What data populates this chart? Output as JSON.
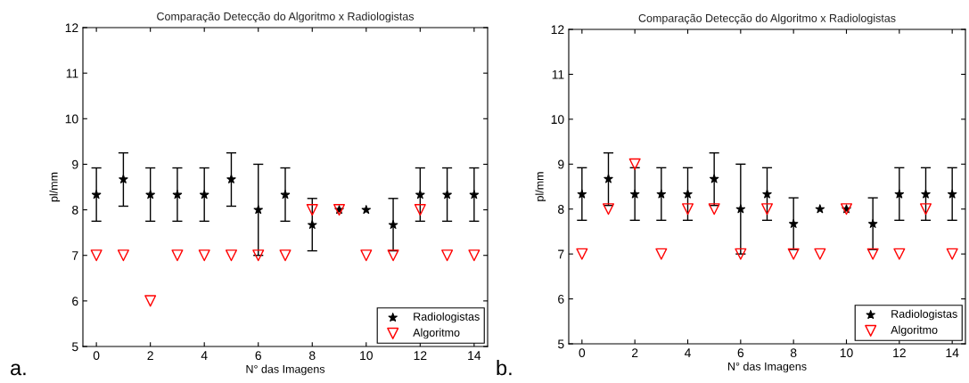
{
  "chart_data": [
    {
      "type": "scatter",
      "title": "Comparação Detecção do Algoritmo x Radiologistas",
      "xlabel": "N° das Imagens",
      "ylabel": "pl/mm",
      "annotations": [
        "a."
      ],
      "x": [
        0,
        1,
        2,
        3,
        4,
        5,
        6,
        7,
        8,
        9,
        10,
        11,
        12,
        13,
        14
      ],
      "series": [
        {
          "name": "Radiologistas",
          "color": "#000000",
          "marker": "star",
          "values": [
            8.33,
            8.67,
            8.33,
            8.33,
            8.33,
            8.67,
            8.0,
            8.33,
            7.67,
            8.0,
            8.0,
            7.67,
            8.33,
            8.33,
            8.33
          ],
          "errors": [
            [
              7.75,
              8.92
            ],
            [
              8.08,
              9.25
            ],
            [
              7.75,
              8.92
            ],
            [
              7.75,
              8.92
            ],
            [
              7.75,
              8.92
            ],
            [
              8.08,
              9.25
            ],
            [
              7.0,
              9.0
            ],
            [
              7.75,
              8.92
            ],
            [
              7.1,
              8.25
            ],
            null,
            null,
            [
              7.1,
              8.25
            ],
            [
              7.75,
              8.92
            ],
            [
              7.75,
              8.92
            ],
            [
              7.75,
              8.92
            ]
          ]
        },
        {
          "name": "Algoritmo",
          "color": "#ff0000",
          "marker": "triangle",
          "values": [
            7,
            7,
            6,
            7,
            7,
            7,
            7,
            7,
            8,
            8,
            7,
            7,
            8,
            7,
            7
          ]
        }
      ],
      "xlim": [
        -0.5,
        14.5
      ],
      "ylim": [
        5,
        12
      ],
      "xticks": [
        0,
        2,
        4,
        6,
        8,
        10,
        12,
        14
      ],
      "yticks": [
        5,
        6,
        7,
        8,
        9,
        10,
        11,
        12
      ],
      "grid": false,
      "legend": "bottom right"
    },
    {
      "type": "scatter",
      "title": "Comparação Detecção do Algoritmo x Radiologistas",
      "xlabel": "N° das Imagens",
      "ylabel": "pl/mm",
      "annotations": [
        "b."
      ],
      "x": [
        0,
        1,
        2,
        3,
        4,
        5,
        6,
        7,
        8,
        9,
        10,
        11,
        12,
        13,
        14
      ],
      "series": [
        {
          "name": "Radiologistas",
          "color": "#000000",
          "marker": "star",
          "values": [
            8.33,
            8.67,
            8.33,
            8.33,
            8.33,
            8.67,
            8.0,
            8.33,
            7.67,
            8.0,
            8.0,
            7.67,
            8.33,
            8.33,
            8.33
          ],
          "errors": [
            [
              7.75,
              8.92
            ],
            [
              8.08,
              9.25
            ],
            [
              7.75,
              8.92
            ],
            [
              7.75,
              8.92
            ],
            [
              7.75,
              8.92
            ],
            [
              8.08,
              9.25
            ],
            [
              7.0,
              9.0
            ],
            [
              7.75,
              8.92
            ],
            [
              7.1,
              8.25
            ],
            null,
            null,
            [
              7.1,
              8.25
            ],
            [
              7.75,
              8.92
            ],
            [
              7.75,
              8.92
            ],
            [
              7.75,
              8.92
            ]
          ]
        },
        {
          "name": "Algoritmo",
          "color": "#ff0000",
          "marker": "triangle",
          "values": [
            7,
            8,
            9,
            7,
            8,
            8,
            7,
            8,
            7,
            7,
            8,
            7,
            7,
            8,
            7
          ]
        }
      ],
      "xlim": [
        -0.5,
        14.5
      ],
      "ylim": [
        5,
        12
      ],
      "xticks": [
        0,
        2,
        4,
        6,
        8,
        10,
        12,
        14
      ],
      "yticks": [
        5,
        6,
        7,
        8,
        9,
        10,
        11,
        12
      ],
      "grid": false,
      "legend": "bottom right"
    }
  ]
}
